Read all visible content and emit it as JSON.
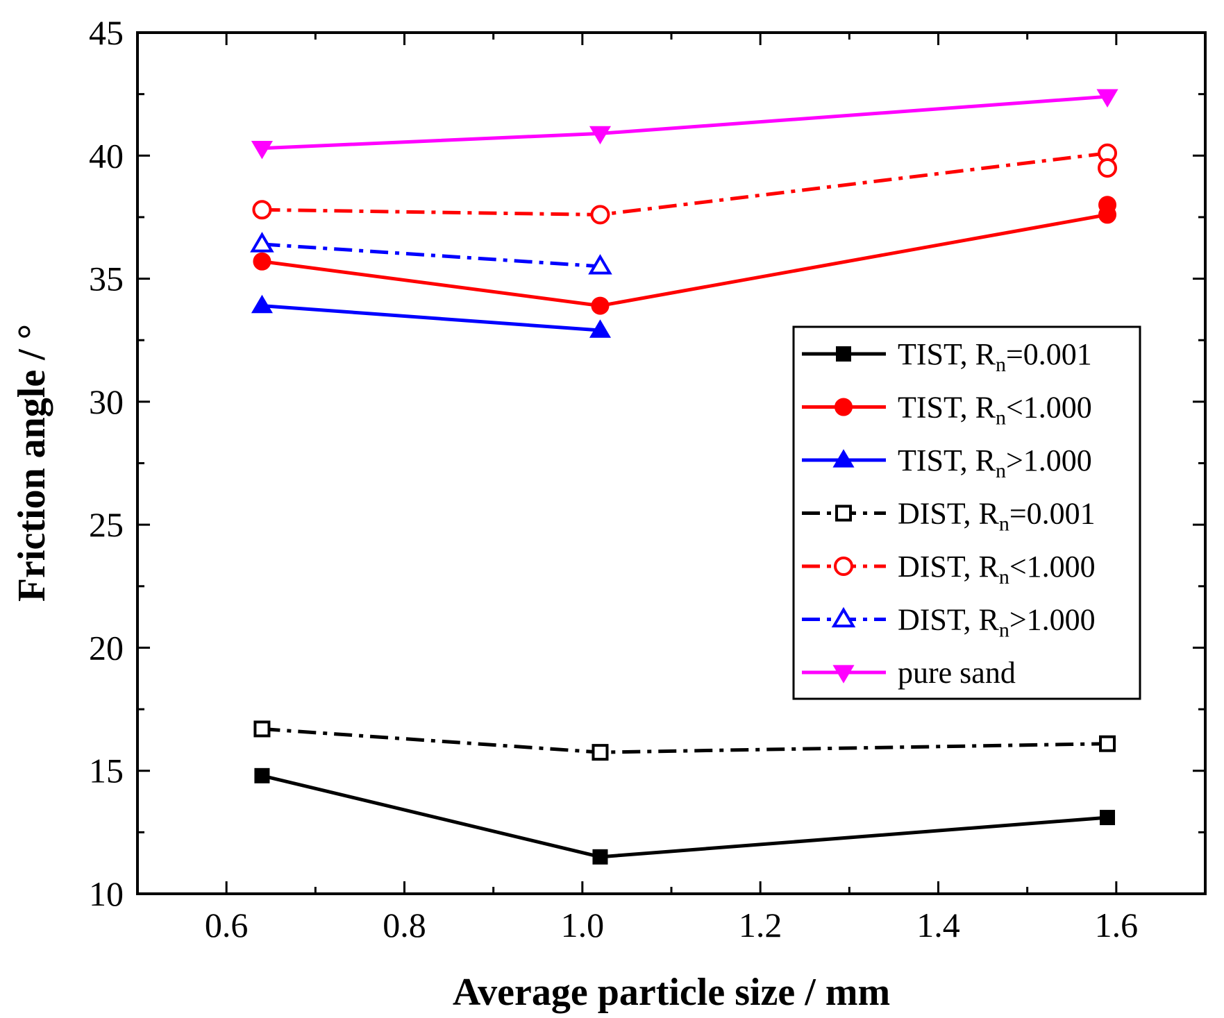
{
  "chart_data": {
    "type": "line",
    "title": "",
    "xlabel": "Average particle size / mm",
    "ylabel": "Friction angle / °",
    "xlim": [
      0.5,
      1.7
    ],
    "ylim": [
      10,
      45
    ],
    "xticks": [
      0.6,
      0.8,
      1.0,
      1.2,
      1.4,
      1.6
    ],
    "xtick_labels": [
      "0.6",
      "0.8",
      "1.0",
      "1.2",
      "1.4",
      "1.6"
    ],
    "yticks": [
      10,
      15,
      20,
      25,
      30,
      35,
      40,
      45
    ],
    "ytick_labels": [
      "10",
      "15",
      "20",
      "25",
      "30",
      "35",
      "40",
      "45"
    ],
    "legend_position": "middle-right",
    "series": [
      {
        "method": "TIST",
        "cond": "=0.001",
        "color": "#000000",
        "dash": "solid",
        "marker": "square",
        "filled": true,
        "x": [
          0.64,
          1.02,
          1.59
        ],
        "y": [
          14.8,
          11.5,
          13.1
        ]
      },
      {
        "method": "TIST",
        "cond": "<1.000",
        "color": "#ff0000",
        "dash": "solid",
        "marker": "circle",
        "filled": true,
        "x": [
          0.64,
          1.02,
          1.59
        ],
        "y": [
          35.7,
          33.9,
          37.6
        ],
        "extra_x": [
          1.59
        ],
        "extra_y": [
          38.0
        ]
      },
      {
        "method": "TIST",
        "cond": ">1.000",
        "color": "#0000ff",
        "dash": "solid",
        "marker": "triangle-up",
        "filled": true,
        "x": [
          0.64,
          1.02
        ],
        "y": [
          33.9,
          32.9
        ]
      },
      {
        "method": "DIST",
        "cond": "=0.001",
        "color": "#000000",
        "dash": "dashdot",
        "marker": "square",
        "filled": false,
        "x": [
          0.64,
          1.02,
          1.59
        ],
        "y": [
          16.7,
          15.75,
          16.1
        ]
      },
      {
        "method": "DIST",
        "cond": "<1.000",
        "color": "#ff0000",
        "dash": "dashdot",
        "marker": "circle",
        "filled": false,
        "x": [
          0.64,
          1.02,
          1.59
        ],
        "y": [
          37.8,
          37.6,
          40.1
        ],
        "extra_x": [
          1.59
        ],
        "extra_y": [
          39.5
        ]
      },
      {
        "method": "DIST",
        "cond": ">1.000",
        "color": "#0000ff",
        "dash": "dashdot",
        "marker": "triangle-up",
        "filled": false,
        "x": [
          0.64,
          1.02
        ],
        "y": [
          36.4,
          35.5
        ]
      },
      {
        "name": "pure sand",
        "color": "#ff00ff",
        "dash": "solid",
        "marker": "triangle-down",
        "filled": true,
        "x": [
          0.64,
          1.02,
          1.59
        ],
        "y": [
          40.3,
          40.9,
          42.4
        ]
      }
    ]
  },
  "legend_prefix_R": "R",
  "legend_sub_n": "n"
}
